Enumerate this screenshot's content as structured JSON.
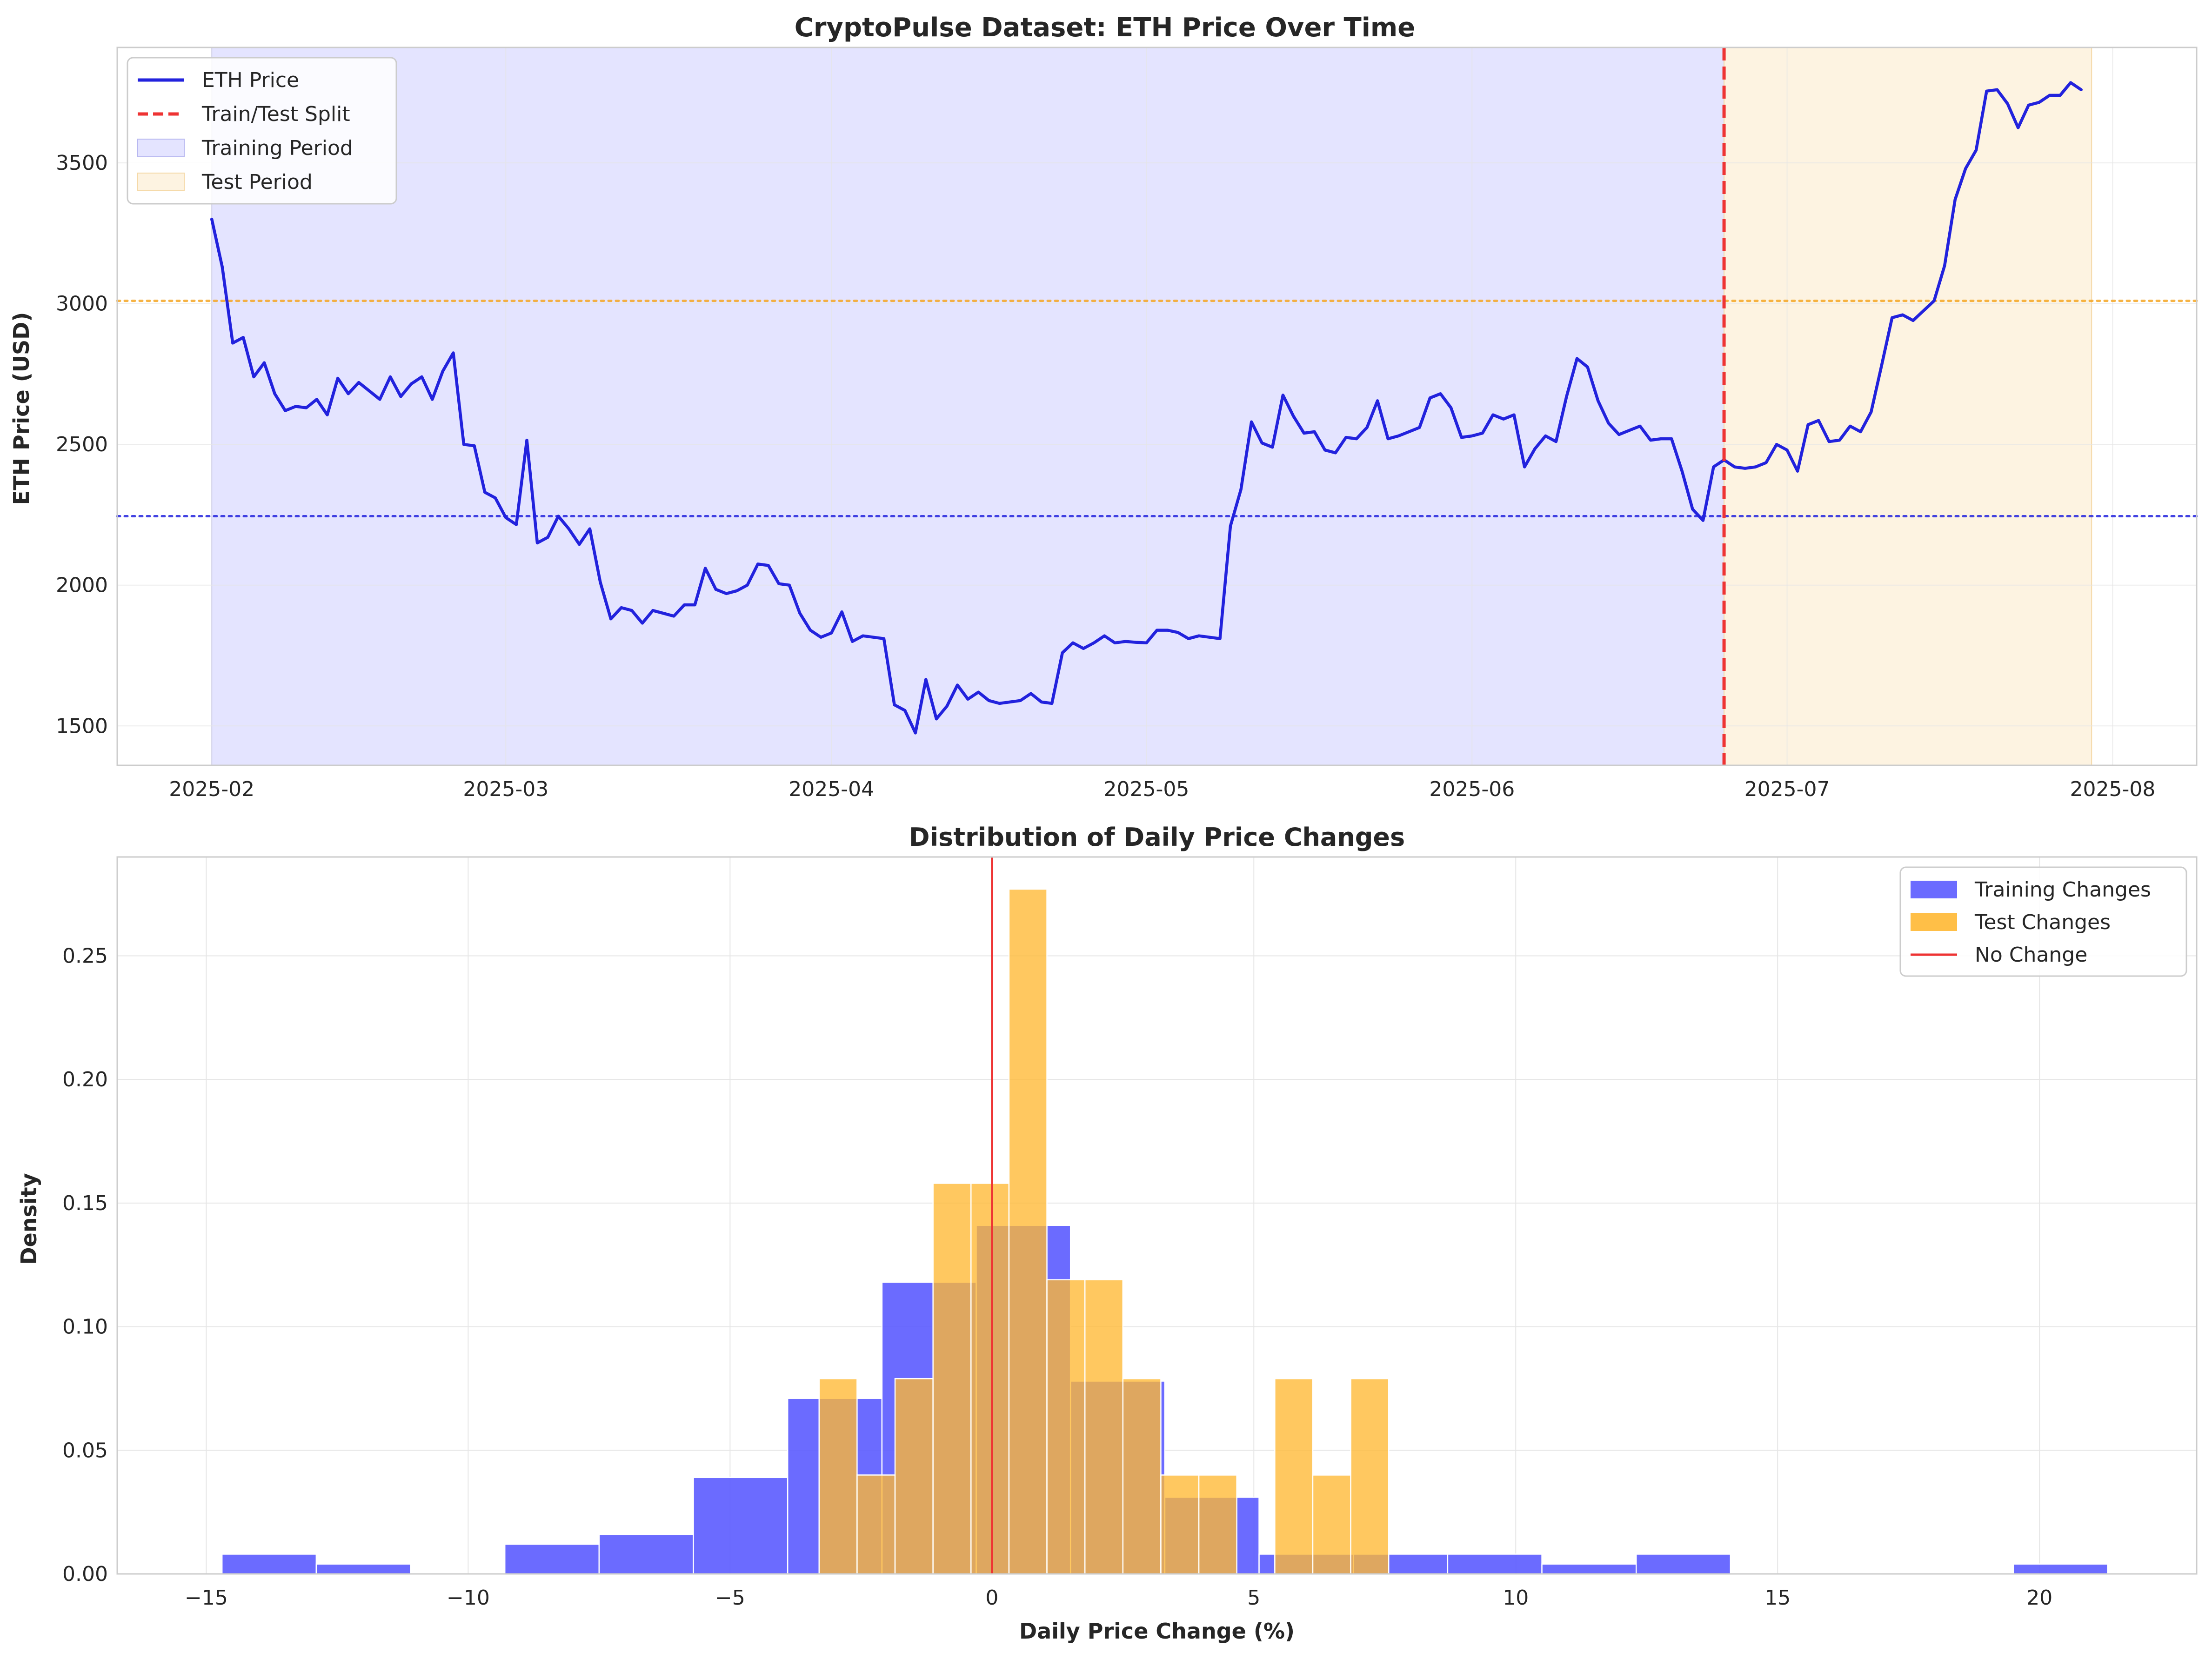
{
  "chart_data": [
    {
      "type": "line",
      "title": "CryptoPulse Dataset: ETH Price Over Time",
      "xlabel": "",
      "ylabel": "ETH Price (USD)",
      "xlim": [
        "2025-01-23",
        "2025-08-09"
      ],
      "ylim": [
        1360,
        3910
      ],
      "x_ticks": [
        "2025-02-01",
        "2025-03-01",
        "2025-04-01",
        "2025-05-01",
        "2025-06-01",
        "2025-07-01",
        "2025-08-01"
      ],
      "x_tick_labels": [
        "2025-02",
        "2025-03",
        "2025-04",
        "2025-05",
        "2025-06",
        "2025-07",
        "2025-08"
      ],
      "y_ticks": [
        1500,
        2000,
        2500,
        3000,
        3500
      ],
      "grid": true,
      "legend_position": "upper-left",
      "x_start": "2025-02-01",
      "series": [
        {
          "name": "ETH Price",
          "color": "#2222dd",
          "values": [
            3300,
            3130,
            2860,
            2880,
            2740,
            2790,
            2680,
            2620,
            2635,
            2630,
            2660,
            2605,
            2735,
            2680,
            2720,
            2690,
            2660,
            2740,
            2670,
            2715,
            2740,
            2660,
            2760,
            2825,
            2500,
            2495,
            2330,
            2310,
            2240,
            2215,
            2515,
            2150,
            2170,
            2245,
            2200,
            2145,
            2200,
            2010,
            1880,
            1920,
            1910,
            1865,
            1910,
            1900,
            1890,
            1930,
            1930,
            2060,
            1985,
            1970,
            1980,
            2000,
            2075,
            2070,
            2005,
            2000,
            1900,
            1840,
            1815,
            1830,
            1905,
            1800,
            1820,
            1815,
            1810,
            1575,
            1555,
            1475,
            1665,
            1525,
            1570,
            1645,
            1595,
            1620,
            1590,
            1580,
            1585,
            1590,
            1615,
            1585,
            1580,
            1760,
            1795,
            1775,
            1795,
            1820,
            1795,
            1800,
            1797,
            1795,
            1840,
            1840,
            1832,
            1810,
            1820,
            1815,
            1810,
            2210,
            2340,
            2580,
            2505,
            2490,
            2675,
            2600,
            2540,
            2545,
            2480,
            2470,
            2525,
            2520,
            2560,
            2655,
            2520,
            2530,
            2545,
            2560,
            2665,
            2680,
            2630,
            2525,
            2530,
            2540,
            2605,
            2590,
            2605,
            2420,
            2485,
            2530,
            2510,
            2670,
            2805,
            2775,
            2655,
            2575,
            2535,
            2550,
            2565,
            2515,
            2520,
            2520,
            2405,
            2270,
            2230,
            2420,
            2445,
            2420,
            2415,
            2420,
            2435,
            2500,
            2480,
            2405,
            2570,
            2585,
            2510,
            2515,
            2565,
            2545,
            2615,
            2780,
            2950,
            2960,
            2940,
            2975,
            3010,
            3135,
            3370,
            3480,
            3545,
            3755,
            3760,
            3710,
            3625,
            3705,
            3715,
            3740,
            3740,
            3785,
            3760
          ],
          "linestyle": "solid"
        }
      ],
      "split_date": "2025-06-25",
      "training_period": [
        "2025-02-01",
        "2025-06-25"
      ],
      "test_period": [
        "2025-06-25",
        "2025-07-30"
      ],
      "hlines": [
        {
          "y": 3010,
          "color": "#f5a623",
          "style": "dotted"
        },
        {
          "y": 2245,
          "color": "#2222dd",
          "style": "dotted"
        }
      ],
      "legend": [
        {
          "label": "ETH Price",
          "kind": "line",
          "color": "#2222dd"
        },
        {
          "label": "Train/Test Split",
          "kind": "dashed",
          "color": "#ee3333"
        },
        {
          "label": "Training Period",
          "kind": "patch",
          "color": "#e4e4ff",
          "edge": "#b8b8f0"
        },
        {
          "label": "Test Period",
          "kind": "patch",
          "color": "#fdf3e1",
          "edge": "#f5d9a8"
        }
      ]
    },
    {
      "type": "histogram",
      "title": "Distribution of Daily Price Changes",
      "xlabel": "Daily Price Change (%)",
      "ylabel": "Density",
      "xlim": [
        -16.7,
        23.0
      ],
      "ylim": [
        0,
        0.29
      ],
      "x_ticks": [
        -15,
        -10,
        -5,
        0,
        5,
        10,
        15,
        20
      ],
      "x_tick_labels": [
        "−15",
        "−10",
        "−5",
        "0",
        "5",
        "10",
        "15",
        "20"
      ],
      "y_ticks": [
        0.0,
        0.05,
        0.1,
        0.15,
        0.2,
        0.25
      ],
      "y_tick_labels": [
        "0.00",
        "0.05",
        "0.10",
        "0.15",
        "0.20",
        "0.25"
      ],
      "grid": true,
      "legend_position": "upper-right",
      "vline": {
        "x": 0,
        "color": "#ee3333"
      },
      "series": [
        {
          "name": "Training Changes",
          "color": "#5b5bff",
          "opacity": 0.9,
          "bin_edges": [
            -14.7,
            -12.9,
            -11.1,
            -9.3,
            -7.5,
            -5.7,
            -3.9,
            -2.1,
            -0.3,
            1.5,
            3.3,
            5.1,
            6.9,
            8.7,
            10.5,
            12.3,
            14.1,
            15.9,
            17.7,
            19.5,
            21.3
          ],
          "values": [
            0.008,
            0.004,
            0.0,
            0.012,
            0.016,
            0.039,
            0.071,
            0.118,
            0.141,
            0.078,
            0.031,
            0.008,
            0.008,
            0.008,
            0.004,
            0.008,
            0.0,
            0.0,
            0.0,
            0.004
          ]
        },
        {
          "name": "Test Changes",
          "color": "#ffb833",
          "opacity": 0.78,
          "bin_edges": [
            -3.3,
            -2.575,
            -1.85,
            -1.125,
            -0.4,
            0.325,
            1.05,
            1.775,
            2.5,
            3.225,
            3.95,
            4.675,
            5.4,
            6.125,
            6.85,
            7.575
          ],
          "values": [
            0.079,
            0.04,
            0.079,
            0.158,
            0.158,
            0.277,
            0.119,
            0.119,
            0.079,
            0.04,
            0.04,
            0.0,
            0.079,
            0.04,
            0.079
          ]
        }
      ],
      "legend": [
        {
          "label": "Training Changes",
          "kind": "patch",
          "color": "#5b5bff"
        },
        {
          "label": "Test Changes",
          "kind": "patch",
          "color": "#ffb833"
        },
        {
          "label": "No Change",
          "kind": "line",
          "color": "#ee3333"
        }
      ]
    }
  ]
}
